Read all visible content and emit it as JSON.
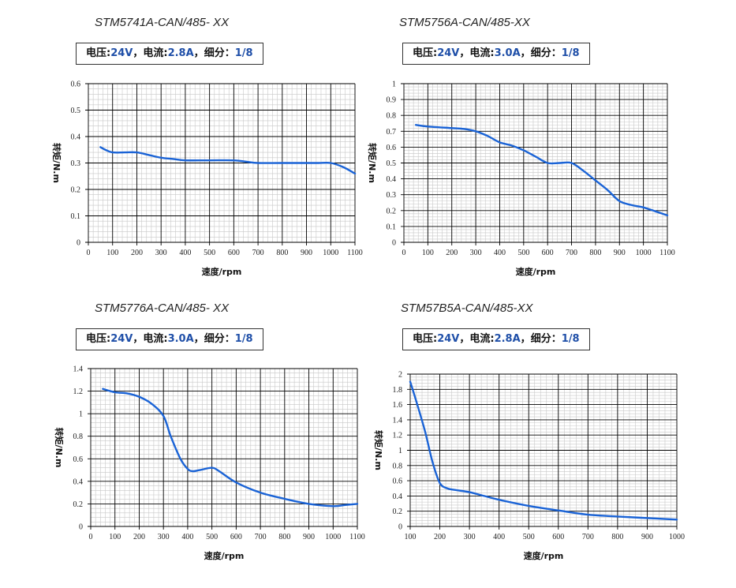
{
  "colors": {
    "curve": "#1a63d6",
    "grid_major": "#000000",
    "grid_minor": "#c8c8c8",
    "value": "#1f4fa8"
  },
  "chart_data": [
    {
      "type": "line",
      "title": "STM5741A-CAN/485- XX",
      "spec": {
        "voltage_label": "电压:",
        "voltage": "24V",
        "sep1": "，",
        "current_label": "电流:",
        "current": "2.8A",
        "sep2": "，",
        "microstep_label": "细分：",
        "microstep": "1/8"
      },
      "xlabel": "速度/rpm",
      "ylabel": "转矩/N.m",
      "xlim": [
        0,
        1100
      ],
      "ylim": [
        0,
        0.6
      ],
      "xticks": [
        0,
        100,
        200,
        300,
        400,
        500,
        600,
        700,
        800,
        900,
        1000,
        1100
      ],
      "yticks": [
        0,
        0.1,
        0.2,
        0.3,
        0.4,
        0.5,
        0.6
      ],
      "yticklabels": [
        "0",
        "0.1",
        "0.2",
        "0.3",
        "0.4",
        "0.5",
        "0.6"
      ],
      "series": [
        {
          "name": "torque",
          "x": [
            50,
            70,
            100,
            150,
            200,
            250,
            300,
            350,
            400,
            500,
            600,
            650,
            700,
            800,
            900,
            950,
            1000,
            1050,
            1100
          ],
          "y": [
            0.36,
            0.35,
            0.34,
            0.34,
            0.34,
            0.33,
            0.32,
            0.315,
            0.31,
            0.31,
            0.31,
            0.305,
            0.3,
            0.3,
            0.3,
            0.3,
            0.3,
            0.285,
            0.26
          ]
        }
      ]
    },
    {
      "type": "line",
      "title": "STM5756A-CAN/485-XX",
      "spec": {
        "voltage_label": "电压:",
        "voltage": "24V",
        "sep1": "，",
        "current_label": "电流:",
        "current": "3.0A",
        "sep2": "，",
        "microstep_label": "细分：",
        "microstep": "1/8"
      },
      "xlabel": "速度/rpm",
      "ylabel": "转矩/N.m",
      "xlim": [
        0,
        1100
      ],
      "ylim": [
        0,
        1
      ],
      "xticks": [
        0,
        100,
        200,
        300,
        400,
        500,
        600,
        700,
        800,
        900,
        1000,
        1100
      ],
      "yticks": [
        0,
        0.1,
        0.2,
        0.3,
        0.4,
        0.5,
        0.6,
        0.7,
        0.8,
        0.9,
        1
      ],
      "yticklabels": [
        "0",
        "0.1",
        "0.2",
        "0.3",
        "0.4",
        "0.5",
        "0.6",
        "0.7",
        "0.8",
        "0.9",
        "1"
      ],
      "series": [
        {
          "name": "torque",
          "x": [
            50,
            100,
            200,
            250,
            300,
            350,
            400,
            450,
            500,
            550,
            600,
            650,
            700,
            750,
            800,
            850,
            900,
            950,
            1000,
            1050,
            1100
          ],
          "y": [
            0.74,
            0.73,
            0.72,
            0.715,
            0.7,
            0.67,
            0.63,
            0.61,
            0.58,
            0.54,
            0.5,
            0.5,
            0.5,
            0.45,
            0.39,
            0.33,
            0.26,
            0.235,
            0.22,
            0.195,
            0.17
          ]
        }
      ]
    },
    {
      "type": "line",
      "title": "STM5776A-CAN/485- XX",
      "spec": {
        "voltage_label": "电压:",
        "voltage": "24V",
        "sep1": "，",
        "current_label": "电流:",
        "current": "3.0A",
        "sep2": "，",
        "microstep_label": "细分：",
        "microstep": "1/8"
      },
      "xlabel": "速度/rpm",
      "ylabel": "转矩/N.m",
      "xlim": [
        0,
        1100
      ],
      "ylim": [
        0,
        1.4
      ],
      "xticks": [
        0,
        100,
        200,
        300,
        400,
        500,
        600,
        700,
        800,
        900,
        1000,
        1100
      ],
      "yticks": [
        0,
        0.2,
        0.4,
        0.6,
        0.8,
        1,
        1.2,
        1.4
      ],
      "yticklabels": [
        "0",
        "0.2",
        "0.4",
        "0.6",
        "0.8",
        "1",
        "1.2",
        "1.4"
      ],
      "series": [
        {
          "name": "torque",
          "x": [
            50,
            100,
            150,
            200,
            250,
            300,
            330,
            370,
            400,
            420,
            450,
            500,
            530,
            600,
            700,
            800,
            900,
            1000,
            1050,
            1100
          ],
          "y": [
            1.22,
            1.19,
            1.18,
            1.15,
            1.09,
            0.98,
            0.8,
            0.6,
            0.51,
            0.49,
            0.5,
            0.52,
            0.49,
            0.39,
            0.3,
            0.245,
            0.2,
            0.18,
            0.19,
            0.2
          ]
        }
      ]
    },
    {
      "type": "line",
      "title": "STM57B5A-CAN/485-XX",
      "spec": {
        "voltage_label": "电压:",
        "voltage": "24V",
        "sep1": "，",
        "current_label": "电流:",
        "current": "2.8A",
        "sep2": "，",
        "microstep_label": "细分：",
        "microstep": "1/8"
      },
      "xlabel": "速度/rpm",
      "ylabel": "转矩/N.m",
      "xlim": [
        100,
        1000
      ],
      "ylim": [
        0,
        2
      ],
      "xticks": [
        100,
        200,
        300,
        400,
        500,
        600,
        700,
        800,
        900,
        1000
      ],
      "yticks": [
        0,
        0.2,
        0.4,
        0.6,
        0.8,
        1,
        1.2,
        1.4,
        1.6,
        1.8,
        2
      ],
      "yticklabels": [
        "0",
        "0.2",
        "0.4",
        "0.6",
        "0.8",
        "1",
        "1.2",
        "1.4",
        "1.6",
        "1.8",
        "2"
      ],
      "series": [
        {
          "name": "torque",
          "x": [
            100,
            120,
            150,
            175,
            200,
            225,
            250,
            300,
            350,
            400,
            500,
            600,
            700,
            800,
            900,
            1000
          ],
          "y": [
            1.9,
            1.65,
            1.25,
            0.85,
            0.57,
            0.5,
            0.48,
            0.45,
            0.4,
            0.35,
            0.27,
            0.21,
            0.155,
            0.13,
            0.11,
            0.09
          ]
        }
      ]
    }
  ]
}
